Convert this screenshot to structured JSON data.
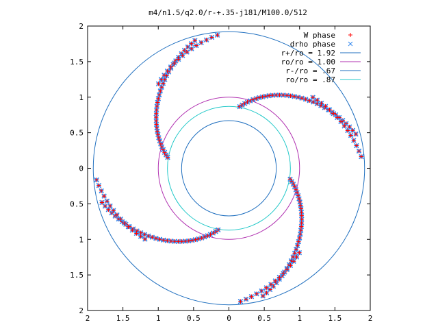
{
  "chart_data": {
    "type": "scatter",
    "title": "m4/n1.5/q2.0/r-+.35-j181/M100.0/512",
    "xlabel": "",
    "ylabel": "",
    "xlim": [
      -2,
      2
    ],
    "ylim": [
      -2,
      2
    ],
    "x_ticks": [
      {
        "value": -2,
        "label": "2"
      },
      {
        "value": -1.5,
        "label": "1.5"
      },
      {
        "value": -1,
        "label": "1"
      },
      {
        "value": -0.5,
        "label": "0.5"
      },
      {
        "value": 0,
        "label": "0"
      },
      {
        "value": 0.5,
        "label": "0.5"
      },
      {
        "value": 1,
        "label": "1"
      },
      {
        "value": 1.5,
        "label": "1.5"
      },
      {
        "value": 2,
        "label": "2"
      }
    ],
    "y_ticks": [
      {
        "value": 2,
        "label": "2"
      },
      {
        "value": 1.5,
        "label": "1.5"
      },
      {
        "value": 1,
        "label": "1"
      },
      {
        "value": 0.5,
        "label": "0.5"
      },
      {
        "value": 0,
        "label": "0"
      },
      {
        "value": -0.5,
        "label": "0.5"
      },
      {
        "value": -1,
        "label": "1"
      },
      {
        "value": -1.5,
        "label": "1.5"
      },
      {
        "value": -2,
        "label": "2"
      }
    ],
    "grid": false,
    "legend_position": "top-right",
    "circles": [
      {
        "name": "r+/ro = 1.92",
        "radius": 1.92,
        "color": "#1f6fbf"
      },
      {
        "name": "ro/ro = 1.00",
        "radius": 1.0,
        "color": "#b030b0"
      },
      {
        "name": "r-/ro = .67",
        "radius": 0.67,
        "color": "#1f6fbf"
      },
      {
        "name": "ro/ro = .87",
        "radius": 0.87,
        "color": "#20c8c8"
      }
    ],
    "series": [
      {
        "name": "W phase",
        "marker": "plus",
        "color": "#ff0000"
      },
      {
        "name": "drho phase",
        "marker": "cross",
        "color": "#3388ee"
      }
    ],
    "spiral_arms": [
      {
        "r_start": 0.88,
        "r_end": 1.86,
        "theta_start_deg": 80,
        "theta_end_deg": 15
      },
      {
        "r_start": 0.88,
        "r_end": 1.86,
        "theta_start_deg": 170,
        "theta_end_deg": 105
      },
      {
        "r_start": 0.88,
        "r_end": 1.86,
        "theta_start_deg": 260,
        "theta_end_deg": 195
      },
      {
        "r_start": 0.88,
        "r_end": 1.86,
        "theta_start_deg": 350,
        "theta_end_deg": 285
      }
    ],
    "spiral_tails": [
      {
        "r_start": 1.55,
        "r_end": 1.88,
        "theta_start_deg": 130,
        "theta_end_deg": 95
      },
      {
        "r_start": 1.55,
        "r_end": 1.88,
        "theta_start_deg": 220,
        "theta_end_deg": 185
      },
      {
        "r_start": 1.55,
        "r_end": 1.88,
        "theta_start_deg": 310,
        "theta_end_deg": 275
      },
      {
        "r_start": 1.55,
        "r_end": 1.88,
        "theta_start_deg": 40,
        "theta_end_deg": 5
      }
    ]
  }
}
